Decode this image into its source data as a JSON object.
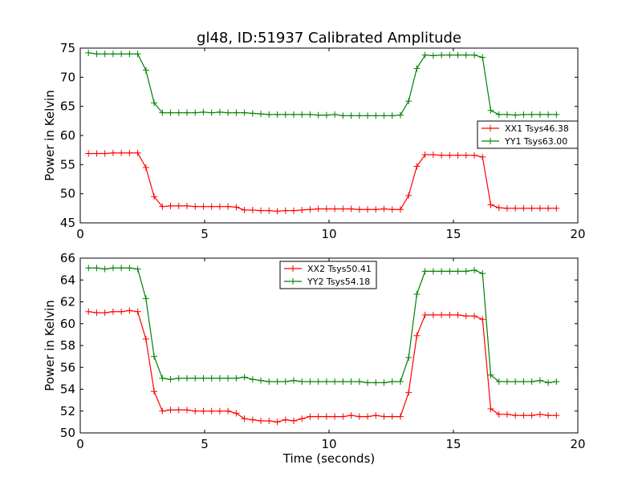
{
  "chart_data": [
    {
      "type": "line",
      "title": "gl48, ID:51937 Calibrated Amplitude",
      "xlabel": "",
      "ylabel": "Power in Kelvin",
      "xlim": [
        0,
        20
      ],
      "ylim": [
        45,
        75
      ],
      "xticks": [
        0,
        5,
        10,
        15,
        20
      ],
      "yticks": [
        45,
        50,
        55,
        60,
        65,
        70,
        75
      ],
      "grid": false,
      "legend_position": "center-right",
      "x": [
        0.33,
        0.66,
        0.99,
        1.32,
        1.65,
        1.98,
        2.31,
        2.64,
        2.97,
        3.3,
        3.63,
        3.96,
        4.29,
        4.62,
        4.95,
        5.28,
        5.61,
        5.94,
        6.27,
        6.6,
        6.93,
        7.26,
        7.59,
        7.92,
        8.25,
        8.58,
        8.91,
        9.24,
        9.57,
        9.9,
        10.23,
        10.56,
        10.89,
        11.22,
        11.55,
        11.88,
        12.21,
        12.54,
        12.87,
        13.2,
        13.53,
        13.86,
        14.19,
        14.52,
        14.85,
        15.18,
        15.51,
        15.84,
        16.17,
        16.5,
        16.83,
        17.16,
        17.49,
        17.82,
        18.15,
        18.48,
        18.81,
        19.14
      ],
      "series": [
        {
          "name": "XX1 Tsys46.38",
          "color": "#ff0000",
          "values": [
            56.9,
            56.9,
            56.9,
            57.0,
            57.0,
            57.0,
            57.0,
            54.5,
            49.5,
            47.8,
            47.9,
            47.9,
            47.9,
            47.8,
            47.8,
            47.8,
            47.8,
            47.8,
            47.7,
            47.2,
            47.2,
            47.1,
            47.1,
            47.0,
            47.1,
            47.1,
            47.2,
            47.3,
            47.4,
            47.4,
            47.4,
            47.4,
            47.4,
            47.3,
            47.3,
            47.3,
            47.4,
            47.3,
            47.3,
            49.7,
            54.7,
            56.7,
            56.7,
            56.6,
            56.6,
            56.6,
            56.6,
            56.6,
            56.3,
            48.1,
            47.6,
            47.5,
            47.5,
            47.5,
            47.5,
            47.5,
            47.5,
            47.5
          ]
        },
        {
          "name": "YY1 Tsys63.00",
          "color": "#008000",
          "values": [
            74.2,
            74.0,
            74.0,
            74.0,
            74.0,
            74.0,
            74.0,
            71.2,
            65.6,
            63.9,
            63.9,
            63.9,
            63.9,
            63.9,
            64.0,
            63.9,
            64.0,
            63.9,
            63.9,
            63.9,
            63.8,
            63.7,
            63.6,
            63.6,
            63.6,
            63.6,
            63.6,
            63.6,
            63.5,
            63.5,
            63.6,
            63.4,
            63.4,
            63.4,
            63.4,
            63.4,
            63.4,
            63.4,
            63.5,
            65.9,
            71.5,
            73.8,
            73.7,
            73.8,
            73.8,
            73.8,
            73.8,
            73.8,
            73.4,
            64.3,
            63.6,
            63.6,
            63.5,
            63.6,
            63.6,
            63.6,
            63.6,
            63.6
          ]
        }
      ]
    },
    {
      "type": "line",
      "title": "",
      "xlabel": "Time (seconds)",
      "ylabel": "Power in Kelvin",
      "xlim": [
        0,
        20
      ],
      "ylim": [
        50,
        66
      ],
      "xticks": [
        0,
        5,
        10,
        15,
        20
      ],
      "yticks": [
        50,
        52,
        54,
        56,
        58,
        60,
        62,
        64,
        66
      ],
      "grid": false,
      "legend_position": "top-center",
      "x": [
        0.33,
        0.66,
        0.99,
        1.32,
        1.65,
        1.98,
        2.31,
        2.64,
        2.97,
        3.3,
        3.63,
        3.96,
        4.29,
        4.62,
        4.95,
        5.28,
        5.61,
        5.94,
        6.27,
        6.6,
        6.93,
        7.26,
        7.59,
        7.92,
        8.25,
        8.58,
        8.91,
        9.24,
        9.57,
        9.9,
        10.23,
        10.56,
        10.89,
        11.22,
        11.55,
        11.88,
        12.21,
        12.54,
        12.87,
        13.2,
        13.53,
        13.86,
        14.19,
        14.52,
        14.85,
        15.18,
        15.51,
        15.84,
        16.17,
        16.5,
        16.83,
        17.16,
        17.49,
        17.82,
        18.15,
        18.48,
        18.81,
        19.14
      ],
      "series": [
        {
          "name": "XX2 Tsys50.41",
          "color": "#ff0000",
          "values": [
            61.1,
            61.0,
            61.0,
            61.1,
            61.1,
            61.2,
            61.1,
            58.6,
            53.8,
            52.0,
            52.1,
            52.1,
            52.1,
            52.0,
            52.0,
            52.0,
            52.0,
            52.0,
            51.8,
            51.3,
            51.2,
            51.1,
            51.1,
            51.0,
            51.2,
            51.1,
            51.3,
            51.5,
            51.5,
            51.5,
            51.5,
            51.5,
            51.6,
            51.5,
            51.5,
            51.6,
            51.5,
            51.5,
            51.5,
            53.7,
            58.9,
            60.8,
            60.8,
            60.8,
            60.8,
            60.8,
            60.7,
            60.7,
            60.4,
            52.2,
            51.7,
            51.7,
            51.6,
            51.6,
            51.6,
            51.7,
            51.6,
            51.6
          ]
        },
        {
          "name": "YY2 Tsys54.18",
          "color": "#008000",
          "values": [
            65.1,
            65.1,
            65.0,
            65.1,
            65.1,
            65.1,
            65.0,
            62.3,
            57.0,
            55.0,
            54.9,
            55.0,
            55.0,
            55.0,
            55.0,
            55.0,
            55.0,
            55.0,
            55.0,
            55.1,
            54.9,
            54.8,
            54.7,
            54.7,
            54.7,
            54.8,
            54.7,
            54.7,
            54.7,
            54.7,
            54.7,
            54.7,
            54.7,
            54.7,
            54.6,
            54.6,
            54.6,
            54.7,
            54.7,
            56.9,
            62.7,
            64.8,
            64.8,
            64.8,
            64.8,
            64.8,
            64.8,
            64.9,
            64.6,
            55.3,
            54.7,
            54.7,
            54.7,
            54.7,
            54.7,
            54.8,
            54.6,
            54.7
          ]
        }
      ]
    }
  ]
}
